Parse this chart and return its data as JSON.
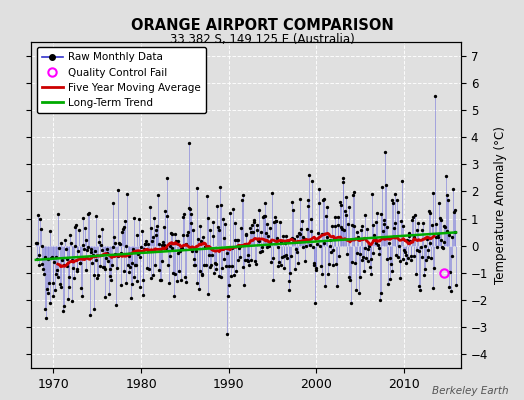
{
  "title": "ORANGE AIRPORT COMPARISON",
  "subtitle": "33.382 S, 149.125 E (Australia)",
  "ylabel": "Temperature Anomaly (°C)",
  "attribution": "Berkeley Earth",
  "ylim": [
    -4.5,
    7.5
  ],
  "yticks": [
    -4,
    -3,
    -2,
    -1,
    0,
    1,
    2,
    3,
    4,
    5,
    6,
    7
  ],
  "xlim": [
    1967.5,
    2016.5
  ],
  "xticks": [
    1970,
    1980,
    1990,
    2000,
    2010
  ],
  "background_color": "#e0e0e0",
  "plot_bg_color": "#e0e0e0",
  "line_color": "#3333cc",
  "fill_color": "#8888dd",
  "moving_avg_color": "#cc0000",
  "trend_color": "#00aa00",
  "qc_color": "#ff00ff",
  "seed": 42
}
